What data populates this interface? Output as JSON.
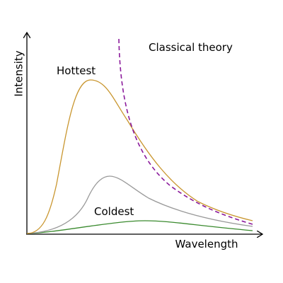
{
  "axes": {
    "y_label": "Intensity",
    "x_label": "Wavelength"
  },
  "annotations": {
    "hottest": "Hottest",
    "coldest": "Coldest",
    "classical": "Classical theory"
  }
}
